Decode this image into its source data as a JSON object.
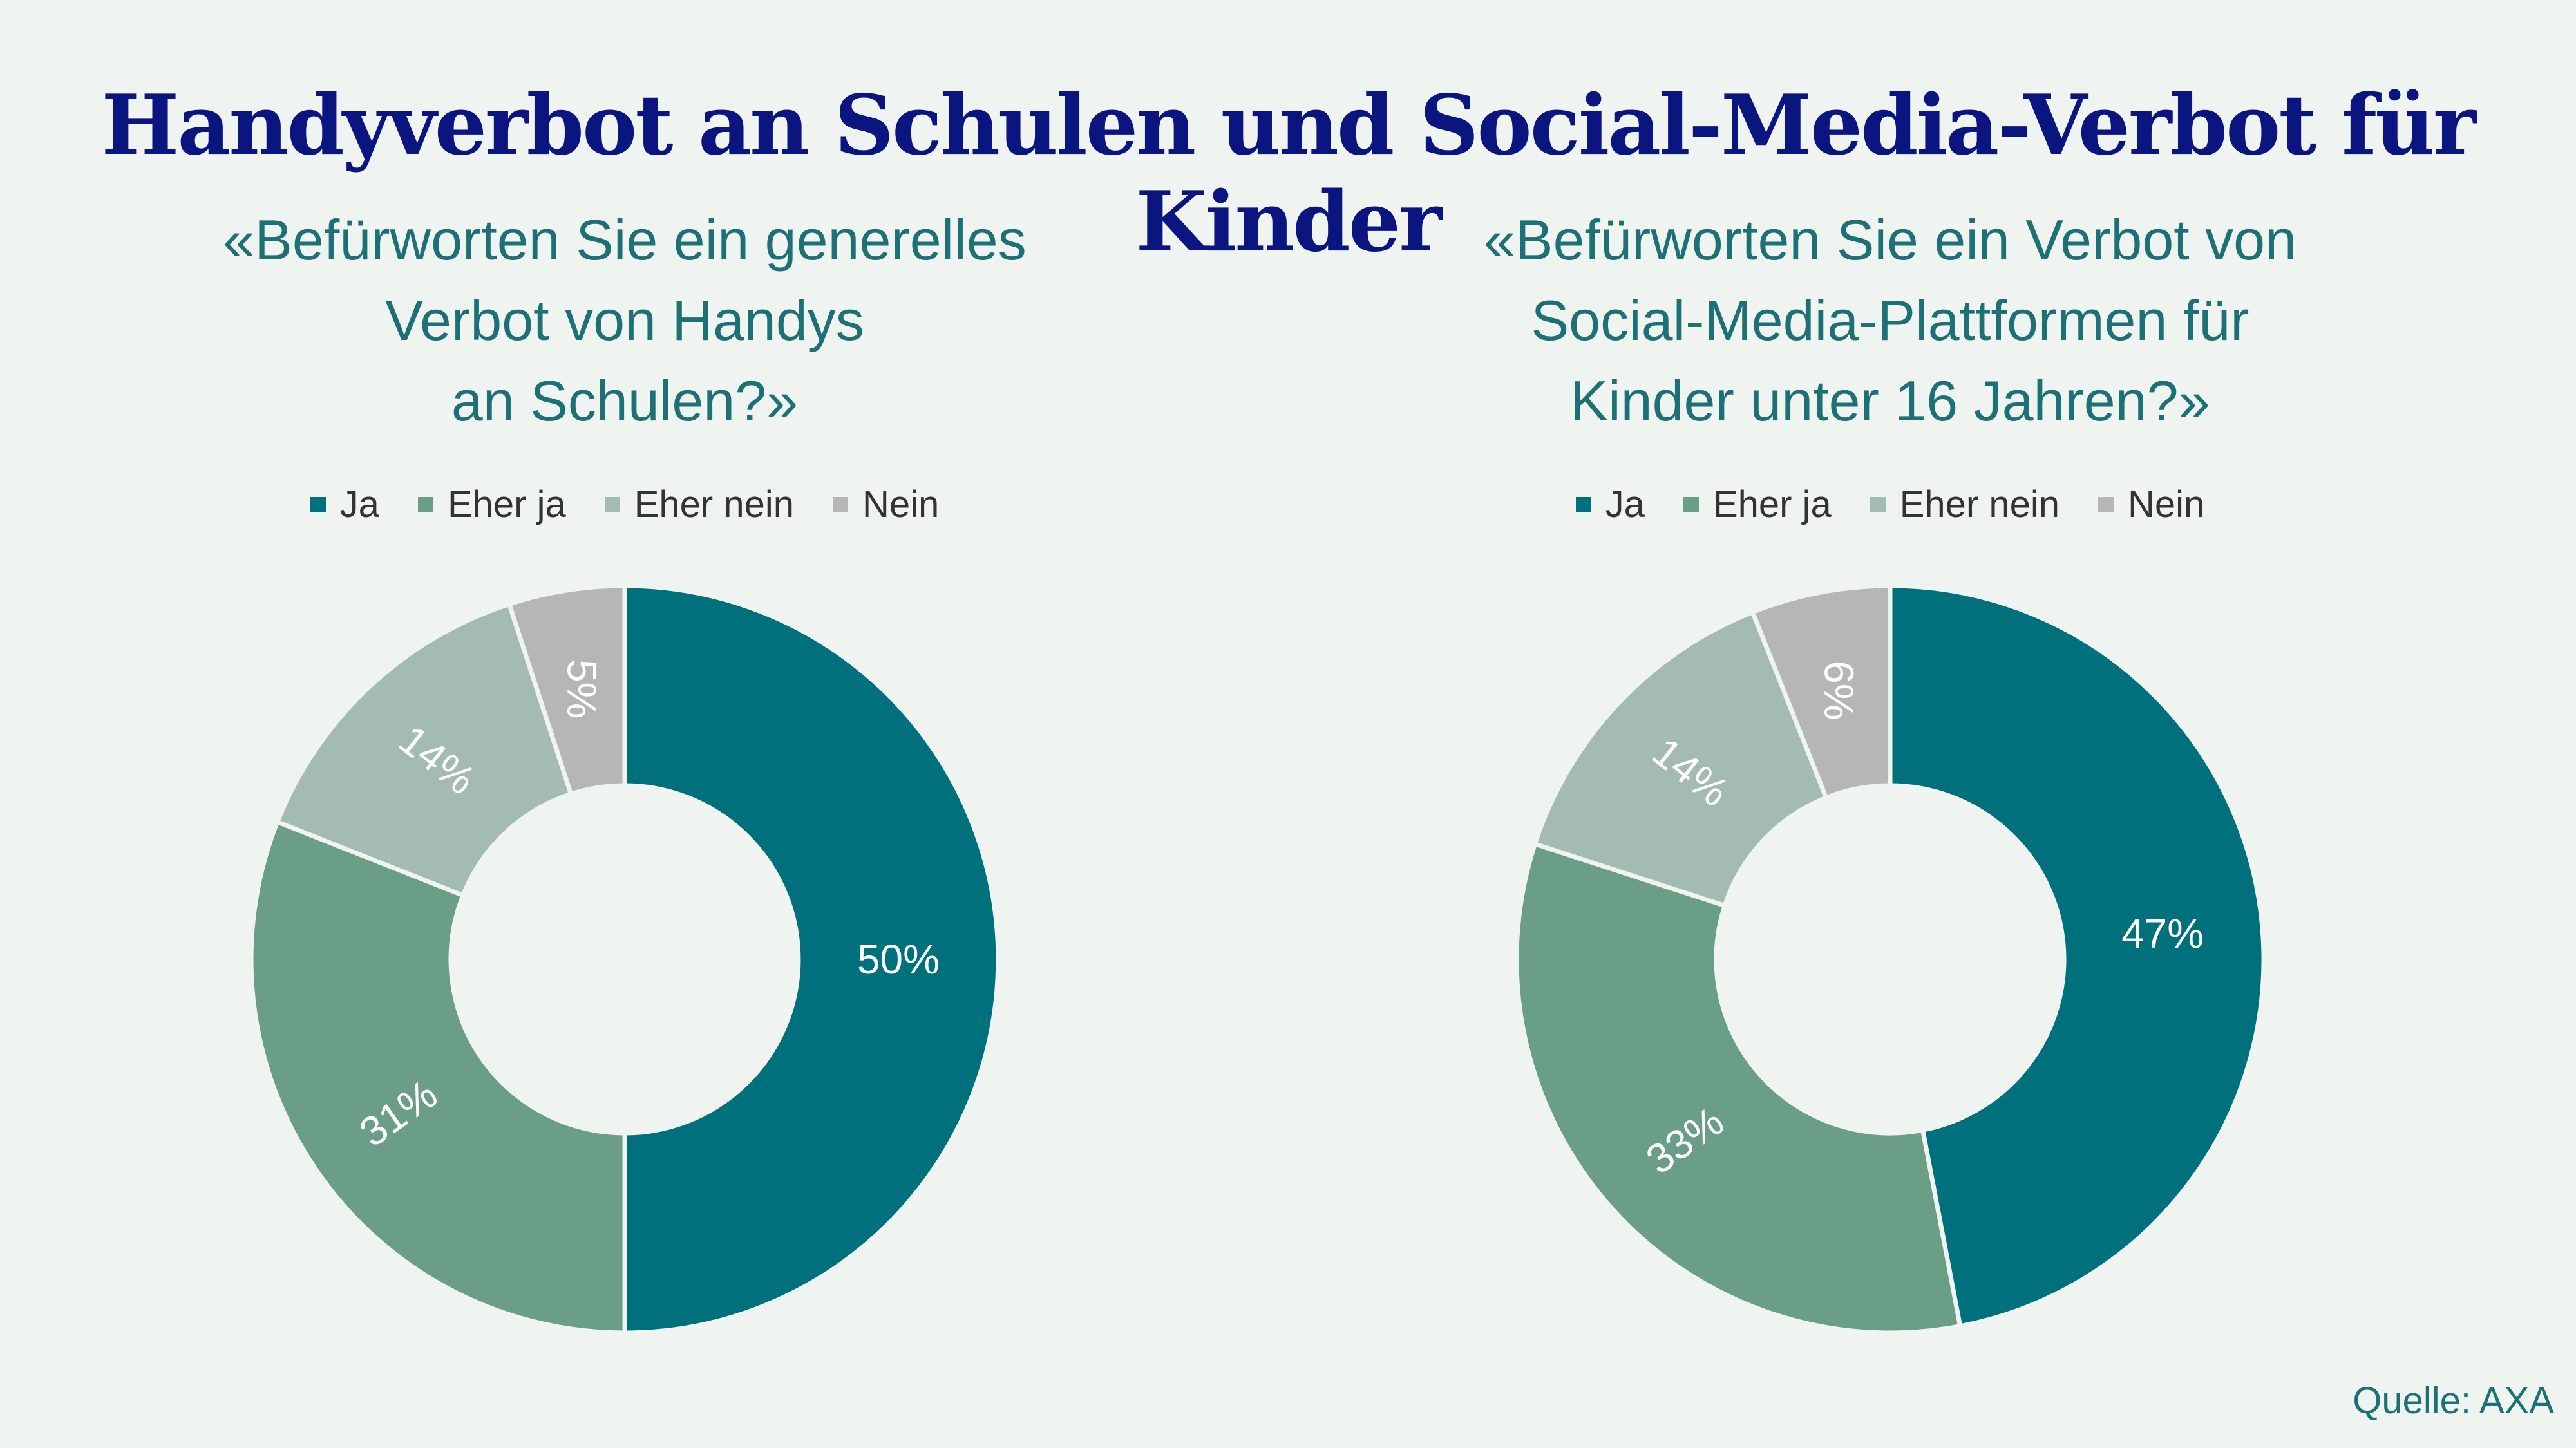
{
  "title": "Handyverbot an Schulen und Social-Media-Verbot für Kinder",
  "source": "Quelle: AXA",
  "colors": {
    "ja": "#00707c",
    "eher_ja": "#6b9e86",
    "eher_nein": "#a3bbb2",
    "nein": "#b6b6b6",
    "title": "#0b1580",
    "accent_text": "#1d7075",
    "background": "#eff4f1"
  },
  "chart_data": [
    {
      "type": "pie",
      "variant": "donut",
      "title_lines": [
        "«Befürworten Sie ein generelles",
        "Verbot von Handys",
        "an Schulen?»"
      ],
      "legend_position": "top",
      "categories": [
        "Ja",
        "Eher ja",
        "Eher nein",
        "Nein"
      ],
      "values": [
        50,
        31,
        14,
        5
      ],
      "labels": [
        "50%",
        "31%",
        "14%",
        "5%"
      ]
    },
    {
      "type": "pie",
      "variant": "donut",
      "title_lines": [
        "«Befürworten Sie ein Verbot von",
        "Social-Media-Plattformen für",
        "Kinder unter 16 Jahren?»"
      ],
      "legend_position": "top",
      "categories": [
        "Ja",
        "Eher ja",
        "Eher nein",
        "Nein"
      ],
      "values": [
        47,
        33,
        14,
        6
      ],
      "labels": [
        "47%",
        "33%",
        "14%",
        "6%"
      ]
    }
  ]
}
